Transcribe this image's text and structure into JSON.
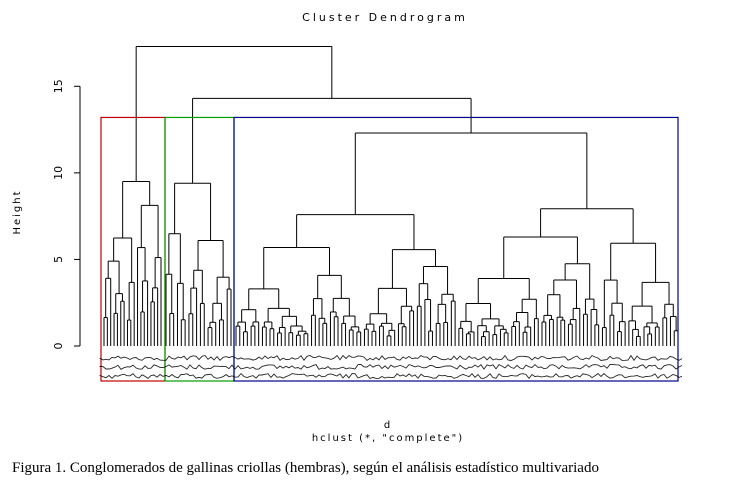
{
  "chart_data": {
    "type": "dendrogram",
    "title": "Cluster Dendrogram",
    "ylabel": "Height",
    "xlabel": "d",
    "method_label": "hclust (*, \"complete\")",
    "ylim": [
      0,
      17.5
    ],
    "yticks": [
      0,
      5,
      10,
      15
    ],
    "root_height": 17.3,
    "clusters": [
      {
        "name": "1",
        "color": "#c00000",
        "members_approx": 18,
        "merge_height": 9.5,
        "box_height": 13.2,
        "sub_merges": [
          7.0,
          8.4,
          6.8,
          5.0,
          4.0
        ]
      },
      {
        "name": "2",
        "color": "#00a000",
        "members_approx": 18,
        "merge_height": 9.4,
        "box_height": 13.2,
        "sub_merges": [
          7.2,
          6.1,
          5.5,
          4.0,
          3.5
        ]
      },
      {
        "name": "3",
        "color": "#00008b",
        "members_approx": 118,
        "merge_height": 12.3,
        "box_height": 13.2,
        "sub_merges": [
          11.3,
          9.5,
          8.9,
          7.9,
          7.7,
          7.2,
          6.8,
          6.2,
          5.8,
          5.5,
          5.0
        ]
      }
    ],
    "upper_merges": [
      {
        "join": [
          "2",
          "3"
        ],
        "height": 14.3
      },
      {
        "join": [
          "1",
          "2+3"
        ],
        "height": 17.3
      }
    ],
    "leaf_labels_legible": false
  },
  "figure": {
    "caption": "Figura 1.  Conglomerados de gallinas criollas (hembras), según el análisis estadístico multivariado"
  }
}
